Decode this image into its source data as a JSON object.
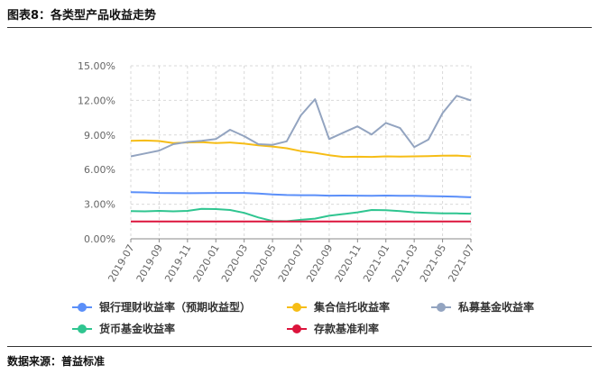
{
  "figure": {
    "title": "图表8：各类型产品收益走势",
    "source_label": "数据来源：",
    "source_value": "普益标准"
  },
  "chart_data": {
    "type": "line",
    "x": [
      "2019-07",
      "2019-08",
      "2019-09",
      "2019-10",
      "2019-11",
      "2019-12",
      "2020-01",
      "2020-02",
      "2020-03",
      "2020-04",
      "2020-05",
      "2020-06",
      "2020-07",
      "2020-08",
      "2020-09",
      "2020-10",
      "2020-11",
      "2020-12",
      "2021-01",
      "2021-02",
      "2021-03",
      "2021-04",
      "2021-05",
      "2021-06",
      "2021-07"
    ],
    "x_tick_labels": [
      "2019-07",
      "2019-09",
      "2019-11",
      "2020-01",
      "2020-03",
      "2020-05",
      "2020-07",
      "2020-09",
      "2020-11",
      "2021-01",
      "2021-03",
      "2021-05",
      "2021-07"
    ],
    "ylim": [
      0,
      15
    ],
    "y_ticks": [
      0,
      3,
      6,
      9,
      12,
      15
    ],
    "y_tick_labels": [
      "0.00%",
      "3.00%",
      "6.00%",
      "9.00%",
      "12.00%",
      "15.00%"
    ],
    "grid": true,
    "legend_position": "bottom",
    "series": [
      {
        "name": "银行理财收益率（预期收益型）",
        "color": "#5B8FF9",
        "values": [
          4.05,
          4.02,
          3.98,
          3.97,
          3.95,
          3.97,
          3.98,
          3.98,
          3.98,
          3.92,
          3.85,
          3.8,
          3.78,
          3.78,
          3.74,
          3.75,
          3.74,
          3.73,
          3.75,
          3.73,
          3.73,
          3.7,
          3.68,
          3.65,
          3.6
        ]
      },
      {
        "name": "集合信托收益率",
        "color": "#F6BD16",
        "values": [
          8.5,
          8.52,
          8.48,
          8.3,
          8.35,
          8.38,
          8.3,
          8.35,
          8.25,
          8.1,
          8.0,
          7.85,
          7.6,
          7.45,
          7.25,
          7.1,
          7.12,
          7.1,
          7.15,
          7.13,
          7.15,
          7.17,
          7.2,
          7.22,
          7.15
        ]
      },
      {
        "name": "私募基金收益率",
        "color": "#93A4C0",
        "values": [
          7.15,
          7.4,
          7.65,
          8.2,
          8.4,
          8.5,
          8.65,
          9.45,
          8.9,
          8.2,
          8.15,
          8.45,
          10.7,
          12.1,
          8.65,
          9.2,
          9.75,
          9.05,
          10.05,
          9.6,
          7.95,
          8.6,
          10.9,
          12.4,
          12.0
        ]
      },
      {
        "name": "货币基金收益率",
        "color": "#2FC590",
        "values": [
          2.4,
          2.38,
          2.42,
          2.38,
          2.42,
          2.6,
          2.58,
          2.5,
          2.25,
          1.85,
          1.55,
          1.52,
          1.65,
          1.75,
          2.0,
          2.15,
          2.3,
          2.5,
          2.48,
          2.4,
          2.3,
          2.25,
          2.2,
          2.2,
          2.18
        ]
      },
      {
        "name": "存款基准利率",
        "color": "#DC143C",
        "values": [
          1.5,
          1.5,
          1.5,
          1.5,
          1.5,
          1.5,
          1.5,
          1.5,
          1.5,
          1.5,
          1.5,
          1.5,
          1.5,
          1.5,
          1.5,
          1.5,
          1.5,
          1.5,
          1.5,
          1.5,
          1.5,
          1.5,
          1.5,
          1.5,
          1.5
        ]
      }
    ]
  }
}
